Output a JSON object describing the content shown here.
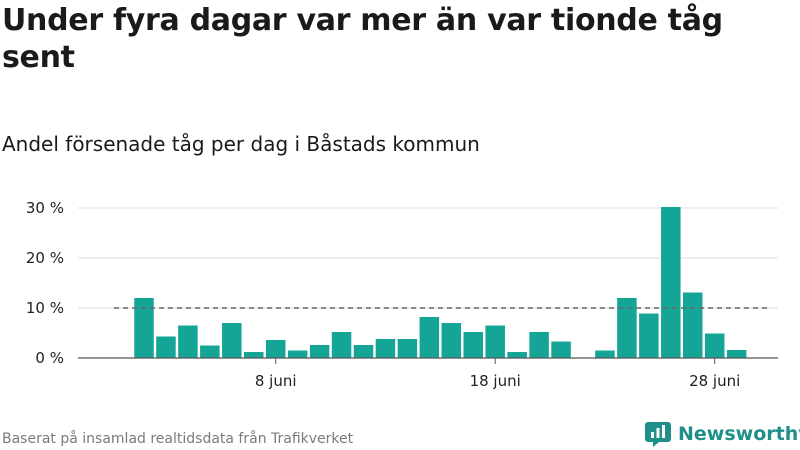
{
  "title": "Under fyra dagar var mer än var tionde tåg sent",
  "subtitle": "Andel försenade tåg per dag i Båstads kommun",
  "footer": "Baserat på insamlad realtidsdata från Trafikverket",
  "brand": "Newsworthy",
  "colors": {
    "bar": "#14a597",
    "reference_line": "#666666",
    "grid": "#dddddd",
    "brand": "#1f8f8a"
  },
  "icons": {
    "brand_logo": "bar-chart-logo-icon"
  },
  "chart_data": {
    "type": "bar",
    "title": "Andel försenade tåg per dag i Båstads kommun",
    "xlabel": "",
    "ylabel": "",
    "x_start_day": 2,
    "x_end_day": 30,
    "x_tick_days": [
      8,
      18,
      28
    ],
    "x_tick_labels": [
      "8 juni",
      "18 juni",
      "28 juni"
    ],
    "y_ticks": [
      0,
      10,
      20,
      30
    ],
    "y_tick_labels": [
      "0 %",
      "10 %",
      "20 %",
      "30 %"
    ],
    "ylim": [
      0,
      30
    ],
    "grid": true,
    "reference_line": {
      "value": 10,
      "style": "dashed"
    },
    "series": [
      {
        "values": [
          12,
          4.3,
          6.5,
          2.5,
          7,
          1.2,
          3.6,
          1.5,
          2.6,
          5.2,
          2.6,
          3.8,
          3.8,
          8.2,
          7,
          5.2,
          6.5,
          1.2,
          5.2,
          3.3,
          0,
          1.5,
          12,
          8.9,
          30.2,
          13.1,
          4.9,
          1.6
        ]
      }
    ]
  }
}
